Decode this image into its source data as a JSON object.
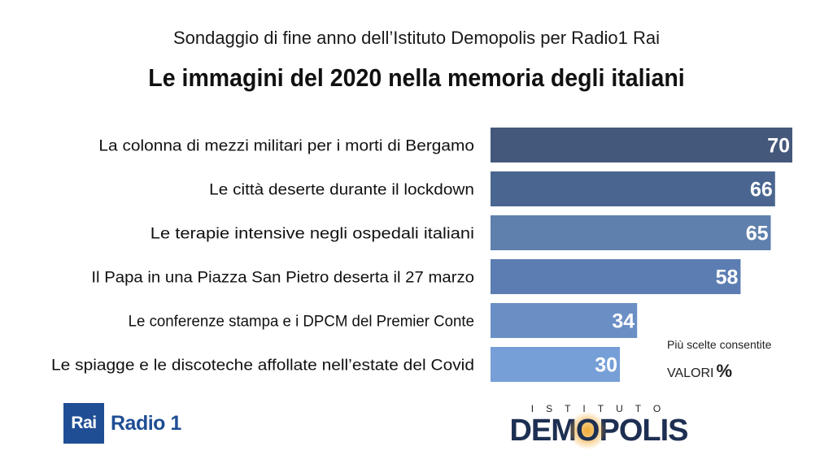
{
  "header": {
    "subtitle": "Sondaggio di fine anno dell’Istituto Demopolis per Radio1 Rai",
    "title": "Le immagini del 2020 nella memoria degli italiani"
  },
  "chart_data": {
    "type": "bar",
    "orientation": "horizontal",
    "title": "Le immagini del 2020 nella memoria degli italiani",
    "categories": [
      "La colonna di mezzi militari per i morti di Bergamo",
      "Le città deserte durante il lockdown",
      "Le terapie intensive negli ospedali italiani",
      "Il Papa in una Piazza San Pietro deserta il 27 marzo",
      "Le conferenze stampa e i DPCM del Premier Conte",
      "Le spiagge e le discoteche affollate nell’estate del Covid"
    ],
    "values": [
      70,
      66,
      65,
      58,
      34,
      30
    ],
    "colors": [
      "#44587b",
      "#4a6690",
      "#5f80ad",
      "#5b7db2",
      "#6a8fc5",
      "#769fd7"
    ],
    "xlim": [
      0,
      70
    ],
    "grid": false,
    "data_labels": true
  },
  "notes": {
    "multiple_choice": "Più scelte consentite",
    "unit_label": "VALORI",
    "unit_symbol": "%"
  },
  "logos": {
    "rai": "Rai",
    "radio": "Radio 1",
    "demopolis_top": "ISTITUTO",
    "demopolis_pre": "DEM",
    "demopolis_o": "O",
    "demopolis_post": "POLIS"
  }
}
